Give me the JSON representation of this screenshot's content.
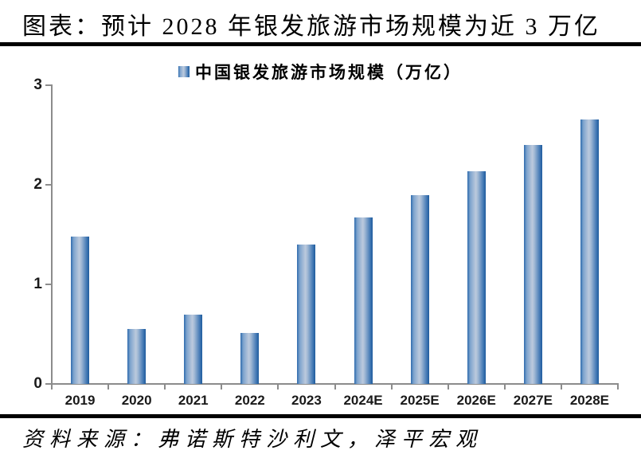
{
  "page": {
    "title": "图表：预计 2028 年银发旅游市场规模为近 3 万亿",
    "source": "资料来源：弗诺斯特沙利文，泽平宏观"
  },
  "legend": {
    "label": "中国银发旅游市场规模（万亿）"
  },
  "colors": {
    "axis": "#8c8c8c",
    "divider": "#000000",
    "label_text": "#1a1a1a",
    "bar_gradient_stops": [
      "#2e6bad",
      "#7da3cd",
      "#bccadd",
      "#9fb7d4",
      "#4a7eb8",
      "#1e5b9d"
    ]
  },
  "chart_data": {
    "type": "bar",
    "title": "中国银发旅游市场规模（万亿）",
    "categories": [
      "2019",
      "2020",
      "2021",
      "2022",
      "2023",
      "2024E",
      "2025E",
      "2026E",
      "2027E",
      "2028E"
    ],
    "values": [
      1.48,
      0.55,
      0.7,
      0.51,
      1.4,
      1.67,
      1.9,
      2.14,
      2.4,
      2.66
    ],
    "xlabel": "",
    "ylabel": "",
    "ylim": [
      0,
      3
    ],
    "yticks": [
      0,
      1,
      2,
      3
    ],
    "grid": false,
    "legend_position": "top-center",
    "series_name": "中国银发旅游市场规模（万亿）"
  }
}
